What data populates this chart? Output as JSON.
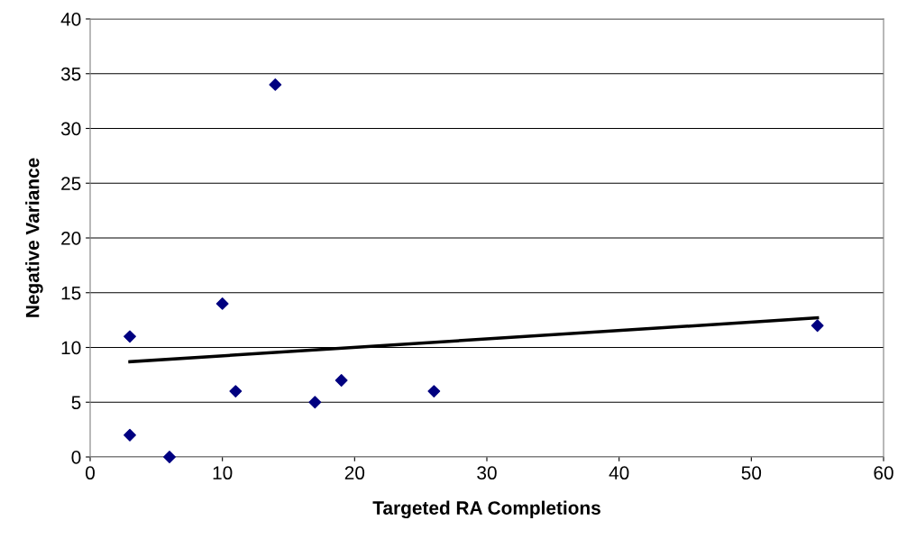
{
  "chart_data": {
    "type": "scatter",
    "xlabel": "Targeted RA Completions",
    "ylabel": "Negative Variance",
    "series": [
      {
        "color": "#000080",
        "marker": "diamond",
        "x": [
          3,
          3,
          6,
          10,
          11,
          14,
          17,
          19,
          26,
          55
        ],
        "values": [
          11,
          2,
          0,
          14,
          6,
          34,
          5,
          7,
          6,
          12
        ]
      },
      {
        "type": "line",
        "color": "#000000",
        "marker": "none",
        "line_style": "solid",
        "x": [
          3,
          55
        ],
        "values": [
          8.7,
          12.7
        ]
      }
    ],
    "xlim": [
      0,
      60
    ],
    "xticks": [
      0,
      10,
      20,
      30,
      40,
      50,
      60
    ],
    "ylim": [
      0,
      40
    ],
    "yticks": [
      0,
      5,
      10,
      15,
      20,
      25,
      30,
      35,
      40
    ],
    "grid": "y"
  }
}
